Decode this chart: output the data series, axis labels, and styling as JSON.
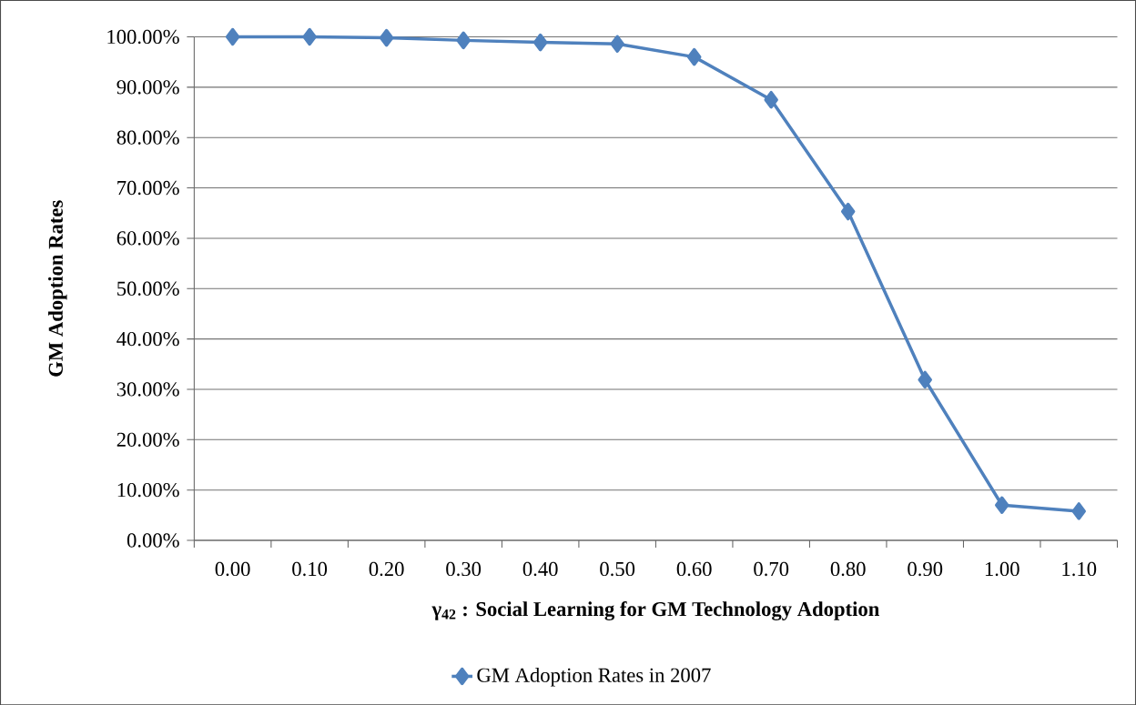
{
  "chart_data": {
    "type": "line",
    "xlabel": "γ$_{42}$ : Social Learning for GM Technology Adoption",
    "ylabel": "GM Adoption Rates",
    "categories": [
      "0.00",
      "0.10",
      "0.20",
      "0.30",
      "0.40",
      "0.50",
      "0.60",
      "0.70",
      "0.80",
      "0.90",
      "1.00",
      "1.10"
    ],
    "series": [
      {
        "name": "GM Adoption Rates in 2007",
        "color": "#4f81bd",
        "values": [
          100,
          100,
          99.8,
          99.3,
          98.9,
          98.6,
          96.0,
          87.5,
          65.3,
          31.9,
          7.0,
          5.8
        ]
      }
    ],
    "ylim": [
      0,
      100
    ],
    "yticks": [
      {
        "value": 0,
        "label": "0.00%"
      },
      {
        "value": 10,
        "label": "10.00%"
      },
      {
        "value": 20,
        "label": "20.00%"
      },
      {
        "value": 30,
        "label": "30.00%"
      },
      {
        "value": 40,
        "label": "40.00%"
      },
      {
        "value": 50,
        "label": "50.00%"
      },
      {
        "value": 60,
        "label": "60.00%"
      },
      {
        "value": 70,
        "label": "70.00%"
      },
      {
        "value": 80,
        "label": "80.00%"
      },
      {
        "value": 90,
        "label": "90.00%"
      },
      {
        "value": 100,
        "label": "100.00%"
      }
    ],
    "grid": "y",
    "legend": "bottom",
    "marker": "diamond",
    "line_style": "solid"
  }
}
